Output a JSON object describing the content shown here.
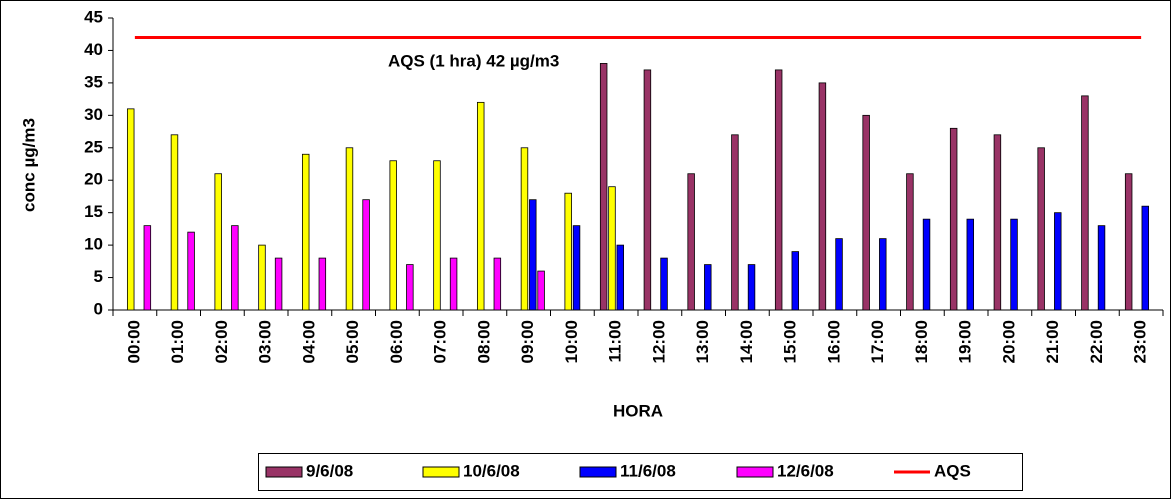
{
  "chart_data": {
    "type": "bar",
    "annotation": "AQS (1 hra) 42 µg/m3",
    "xlabel": "HORA",
    "ylabel": "conc µg/m3",
    "categories": [
      "00:00",
      "01:00",
      "02:00",
      "03:00",
      "04:00",
      "05:00",
      "06:00",
      "07:00",
      "08:00",
      "09:00",
      "10:00",
      "11:00",
      "12:00",
      "13:00",
      "14:00",
      "15:00",
      "16:00",
      "17:00",
      "18:00",
      "19:00",
      "20:00",
      "21:00",
      "22:00",
      "23:00"
    ],
    "series": [
      {
        "name": "9/6/08",
        "color": "#993366",
        "values": [
          null,
          null,
          null,
          null,
          null,
          null,
          null,
          null,
          null,
          null,
          null,
          38,
          37,
          21,
          27,
          37,
          35,
          30,
          21,
          28,
          27,
          25,
          33,
          21
        ]
      },
      {
        "name": "10/6/08",
        "color": "#ffff00",
        "values": [
          31,
          27,
          21,
          10,
          24,
          25,
          23,
          23,
          32,
          25,
          18,
          19,
          null,
          null,
          null,
          null,
          null,
          null,
          null,
          null,
          null,
          null,
          null,
          null
        ]
      },
      {
        "name": "11/6/08",
        "color": "#0000ff",
        "values": [
          null,
          null,
          null,
          null,
          null,
          null,
          null,
          null,
          null,
          17,
          13,
          10,
          8,
          7,
          7,
          9,
          11,
          11,
          14,
          14,
          14,
          15,
          13,
          16
        ]
      },
      {
        "name": "12/6/08",
        "color": "#ff00ff",
        "values": [
          13,
          12,
          13,
          8,
          8,
          17,
          7,
          8,
          8,
          6,
          null,
          null,
          null,
          null,
          null,
          null,
          null,
          null,
          null,
          null,
          null,
          null,
          null,
          null
        ]
      },
      {
        "name": "AQS",
        "color": "#ff0000",
        "type": "line",
        "values": [
          42,
          42,
          42,
          42,
          42,
          42,
          42,
          42,
          42,
          42,
          42,
          42,
          42,
          42,
          42,
          42,
          42,
          42,
          42,
          42,
          42,
          42,
          42,
          42
        ]
      }
    ],
    "ylim": [
      0,
      45
    ],
    "yticks": [
      0,
      5,
      10,
      15,
      20,
      25,
      30,
      35,
      40,
      45
    ],
    "legend": "bottom"
  }
}
